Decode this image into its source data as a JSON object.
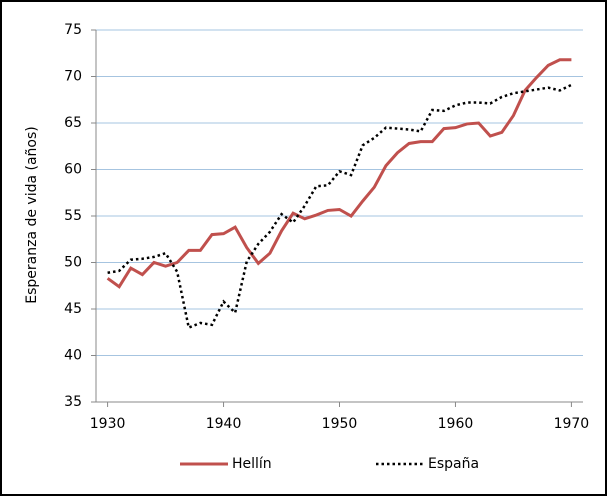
{
  "chart_data": {
    "type": "line",
    "y_label": "Esperanza de vida (años)",
    "x": [
      1930,
      1931,
      1932,
      1933,
      1934,
      1935,
      1936,
      1937,
      1938,
      1939,
      1940,
      1941,
      1942,
      1943,
      1944,
      1945,
      1946,
      1947,
      1948,
      1949,
      1950,
      1951,
      1952,
      1953,
      1954,
      1955,
      1956,
      1957,
      1958,
      1959,
      1960,
      1961,
      1962,
      1963,
      1964,
      1965,
      1966,
      1967,
      1968,
      1969,
      1970
    ],
    "series": [
      {
        "name": "Hellín",
        "color": "#c0504d",
        "dash": "solid",
        "values": [
          48.3,
          47.4,
          49.4,
          48.7,
          50.0,
          49.6,
          50.0,
          51.3,
          51.3,
          53.0,
          53.1,
          53.8,
          51.6,
          49.9,
          51.0,
          53.4,
          55.3,
          54.7,
          55.1,
          55.6,
          55.7,
          55.0,
          56.6,
          58.1,
          60.4,
          61.8,
          62.8,
          63.0,
          63.0,
          64.4,
          64.5,
          64.9,
          65.0,
          63.6,
          64.0,
          65.8,
          68.5,
          69.9,
          71.2,
          71.8,
          71.8
        ]
      },
      {
        "name": "España",
        "color": "#000000",
        "dash": "dotted",
        "values": [
          48.9,
          49.1,
          50.3,
          50.4,
          50.6,
          51.0,
          49.0,
          43.0,
          43.5,
          43.3,
          45.8,
          44.6,
          50.1,
          52.0,
          53.3,
          55.2,
          54.3,
          56.1,
          58.2,
          58.3,
          59.8,
          59.4,
          62.6,
          63.4,
          64.5,
          64.4,
          64.3,
          64.1,
          66.4,
          66.3,
          66.9,
          67.2,
          67.2,
          67.1,
          67.8,
          68.2,
          68.4,
          68.6,
          68.8,
          68.5,
          69.1
        ]
      }
    ],
    "xlim": [
      1929,
      1971
    ],
    "xticks": [
      1930,
      1940,
      1950,
      1960,
      1970
    ],
    "ylim": [
      35,
      75
    ],
    "yticks": [
      35,
      40,
      45,
      50,
      55,
      60,
      65,
      70,
      75
    ],
    "grid": true,
    "grid_color": "#a6c4e0",
    "legend": "bottom"
  }
}
